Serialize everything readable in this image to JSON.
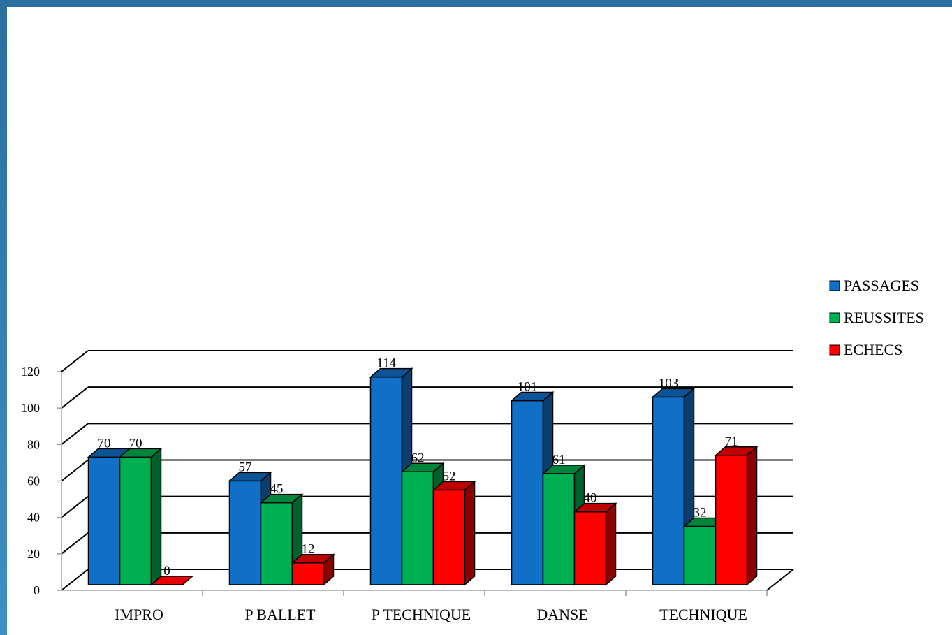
{
  "chart_data": {
    "type": "bar",
    "categories": [
      "IMPRO",
      "P BALLET",
      "P TECHNIQUE",
      "DANSE",
      "TECHNIQUE"
    ],
    "series": [
      {
        "name": "PASSAGES",
        "values": [
          70,
          57,
          114,
          101,
          103
        ],
        "color": "#1070c8"
      },
      {
        "name": "REUSSITES",
        "values": [
          70,
          45,
          62,
          61,
          32
        ],
        "color": "#00b050"
      },
      {
        "name": "ECHECS",
        "values": [
          0,
          12,
          52,
          40,
          71
        ],
        "color": "#ff0000"
      }
    ],
    "ylim": [
      0,
      120
    ],
    "yticks": [
      0,
      20,
      40,
      60,
      80,
      100,
      120
    ],
    "grid": true,
    "style": "3d-clustered-column",
    "legend_position": "right"
  }
}
